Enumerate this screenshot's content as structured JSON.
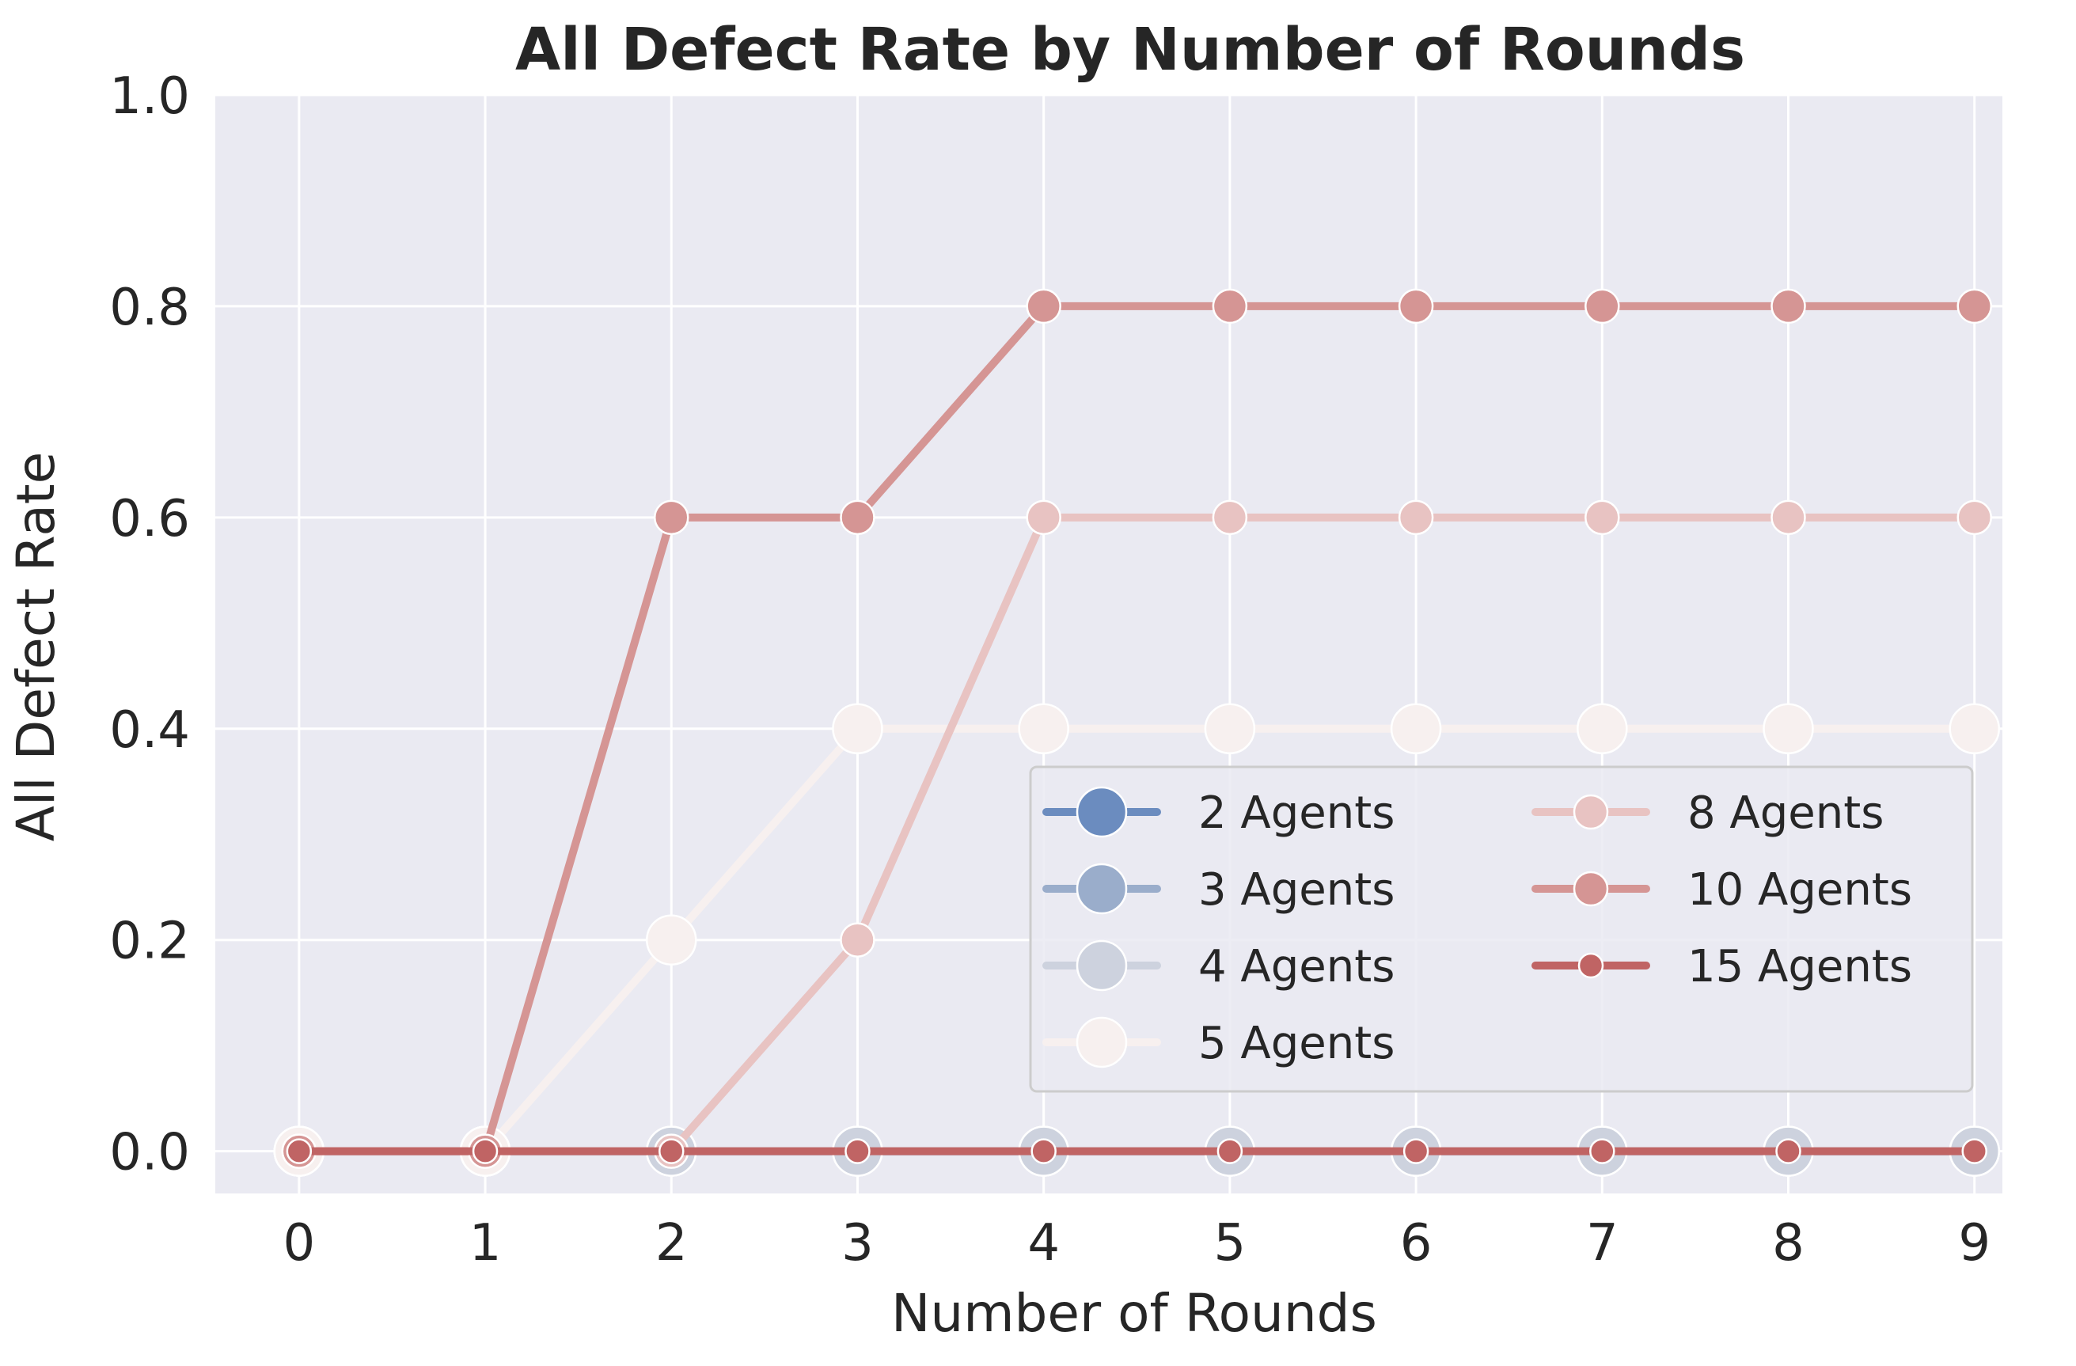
{
  "chart_data": {
    "type": "line",
    "title": "All Defect Rate by Number of Rounds",
    "xlabel": "Number of Rounds",
    "ylabel": "All Defect Rate",
    "x": [
      0,
      1,
      2,
      3,
      4,
      5,
      6,
      7,
      8,
      9
    ],
    "xlim": [
      -0.45,
      9.15
    ],
    "ylim": [
      -0.04,
      1.0
    ],
    "yticks": [
      "0.0",
      "0.2",
      "0.4",
      "0.6",
      "0.8",
      "1.0"
    ],
    "ytick_values": [
      0.0,
      0.2,
      0.4,
      0.6,
      0.8,
      1.0
    ],
    "xticks": [
      "0",
      "1",
      "2",
      "3",
      "4",
      "5",
      "6",
      "7",
      "8",
      "9"
    ],
    "grid": true,
    "legend": {
      "placement": "lower-right",
      "columns": 2
    },
    "series": [
      {
        "name": "2 Agents",
        "color": "#6b8cbf",
        "marker": "large",
        "values": [
          0,
          0,
          0,
          0,
          0,
          0,
          0,
          0,
          0,
          0
        ]
      },
      {
        "name": "3 Agents",
        "color": "#9aadcb",
        "marker": "large",
        "values": [
          0,
          0,
          0,
          0,
          0,
          0,
          0,
          0,
          0,
          0
        ]
      },
      {
        "name": "4 Agents",
        "color": "#cdd2de",
        "marker": "large",
        "values": [
          0,
          0,
          0,
          0,
          0,
          0,
          0,
          0,
          0,
          0
        ]
      },
      {
        "name": "5 Agents",
        "color": "#f7f0ef",
        "marker": "large",
        "values": [
          0,
          0,
          0.2,
          0.4,
          0.4,
          0.4,
          0.4,
          0.4,
          0.4,
          0.4
        ]
      },
      {
        "name": "8 Agents",
        "color": "#e8c3c2",
        "marker": "medium",
        "values": [
          0,
          0,
          0,
          0.2,
          0.6,
          0.6,
          0.6,
          0.6,
          0.6,
          0.6
        ]
      },
      {
        "name": "10 Agents",
        "color": "#d59594",
        "marker": "medium",
        "values": [
          0,
          0,
          0.6,
          0.6,
          0.8,
          0.8,
          0.8,
          0.8,
          0.8,
          0.8
        ]
      },
      {
        "name": "15 Agents",
        "color": "#c06464",
        "marker": "small",
        "values": [
          0,
          0,
          0,
          0,
          0,
          0,
          0,
          0,
          0,
          0
        ]
      }
    ]
  }
}
